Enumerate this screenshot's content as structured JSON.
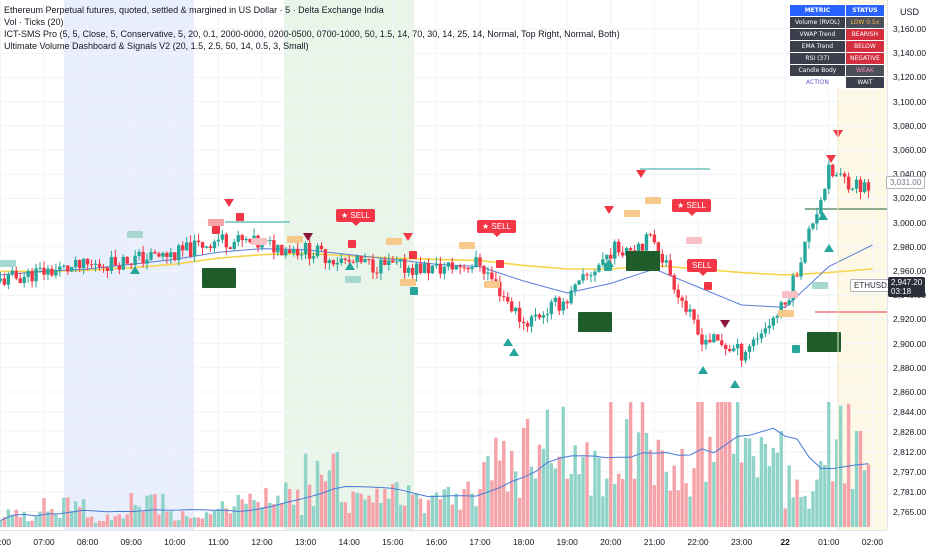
{
  "legend": {
    "line1": "Ethereum Perpetual futures, quoted, settled & margined in US Dollar · 5 · Delta Exchange India",
    "line2": "Vol · Ticks (20)",
    "line3": "ICT-SMS Pro (5, 5, Close, 5, Conservative, 5, 20, 0.1, 2000-0000, 0200-0500, 0700-1000, 50, 1.5, 14, 70, 30, 14, 25, 14, Normal, Top Right, Normal, Both)",
    "line4": "Ultimate Volume Dashboard & Signals V2 (20, 1.5, 2.5, 50, 14, 0.5, 3, Small)"
  },
  "dashboard": {
    "header": [
      "METRIC",
      "STATUS"
    ],
    "rows": [
      {
        "metric": "Volume (RVOL)",
        "status": "LOW 0.5x",
        "tone": "low"
      },
      {
        "metric": "VWAP Trend",
        "status": "BEARISH",
        "tone": "red"
      },
      {
        "metric": "EMA Trend",
        "status": "BELOW",
        "tone": "red"
      },
      {
        "metric": "RSI (37)",
        "status": "NEGATIVE",
        "tone": "red"
      },
      {
        "metric": "Candle Body",
        "status": "WEAK",
        "tone": "weak"
      }
    ],
    "footer": [
      "ACTION",
      "WAIT"
    ]
  },
  "price_axis": {
    "currency": "USD",
    "labels": [
      "3,160.00",
      "3,140.00",
      "3,120.00",
      "3,100.00",
      "3,080.00",
      "3,060.00",
      "3,040.00",
      "3,020.00",
      "3,000.00",
      "2,980.00",
      "2,960.00",
      "2,940.00",
      "2,920.00",
      "2,900.00",
      "2,880.00",
      "2,860.00",
      "2,844.00",
      "2,828.00",
      "2,812.00",
      "2,797.00",
      "2,781.00",
      "2,765.00"
    ],
    "badge_ref": "3,031.00",
    "current_price": "2,947.20",
    "countdown": "03:18",
    "symbol_tag": "ETHUSD.P"
  },
  "time_axis": {
    "labels": [
      "06:00",
      "07:00",
      "08:00",
      "09:00",
      "10:00",
      "11:00",
      "12:00",
      "13:00",
      "14:00",
      "15:00",
      "16:00",
      "17:00",
      "18:00",
      "19:00",
      "20:00",
      "21:00",
      "22:00",
      "23:00",
      "22",
      "01:00",
      "02:00"
    ]
  },
  "signals": {
    "sell_1": "★ SELL",
    "sell_2": "★ SELL",
    "sell_3": "★ SELL",
    "sell_4": "SELL"
  },
  "colors": {
    "up": "#26a69a",
    "down": "#f23645",
    "vwap": "#f7d54a",
    "ema": "#5b7fd8",
    "session_blue": "#e8eefb",
    "session_green": "#e9f5e9",
    "session_yellow": "#fdf9e6",
    "block": "#1e5d2a"
  },
  "chart_data": {
    "type": "candlestick",
    "x": [
      "06:00",
      "07:00",
      "08:00",
      "09:00",
      "10:00",
      "11:00",
      "12:00",
      "13:00",
      "14:00",
      "15:00",
      "16:00",
      "17:00",
      "18:00",
      "19:00",
      "20:00",
      "21:00",
      "22:00",
      "23:00",
      "00:00",
      "01:00",
      "02:00"
    ],
    "series": [
      {
        "close": [
          2950,
          2958,
          2962,
          2968,
          2972,
          2985,
          2980,
          2976,
          2965,
          2962,
          2960,
          2965,
          2915,
          2935,
          2975,
          2985,
          2905,
          2890,
          2930,
          3040,
          3025
        ]
      },
      {
        "ema": [
          2955,
          2958,
          2960,
          2964,
          2968,
          2974,
          2977,
          2976,
          2972,
          2968,
          2964,
          2962,
          2950,
          2940,
          2948,
          2960,
          2945,
          2930,
          2928,
          2962,
          2980
        ]
      },
      {
        "vwap": [
          2958,
          2958,
          2959,
          2961,
          2964,
          2969,
          2972,
          2973,
          2971,
          2969,
          2968,
          2967,
          2963,
          2960,
          2960,
          2963,
          2960,
          2957,
          2955,
          2957,
          2960
        ]
      },
      {
        "volume": [
          0.3,
          0.5,
          0.2,
          0.6,
          0.3,
          0.5,
          0.7,
          1.2,
          0.6,
          0.8,
          0.8,
          1.5,
          2.0,
          1.4,
          2.2,
          1.3,
          2.6,
          1.6,
          1.0,
          2.1,
          1.8
        ]
      }
    ],
    "ylim": [
      2750,
      3170
    ],
    "grid": true
  }
}
